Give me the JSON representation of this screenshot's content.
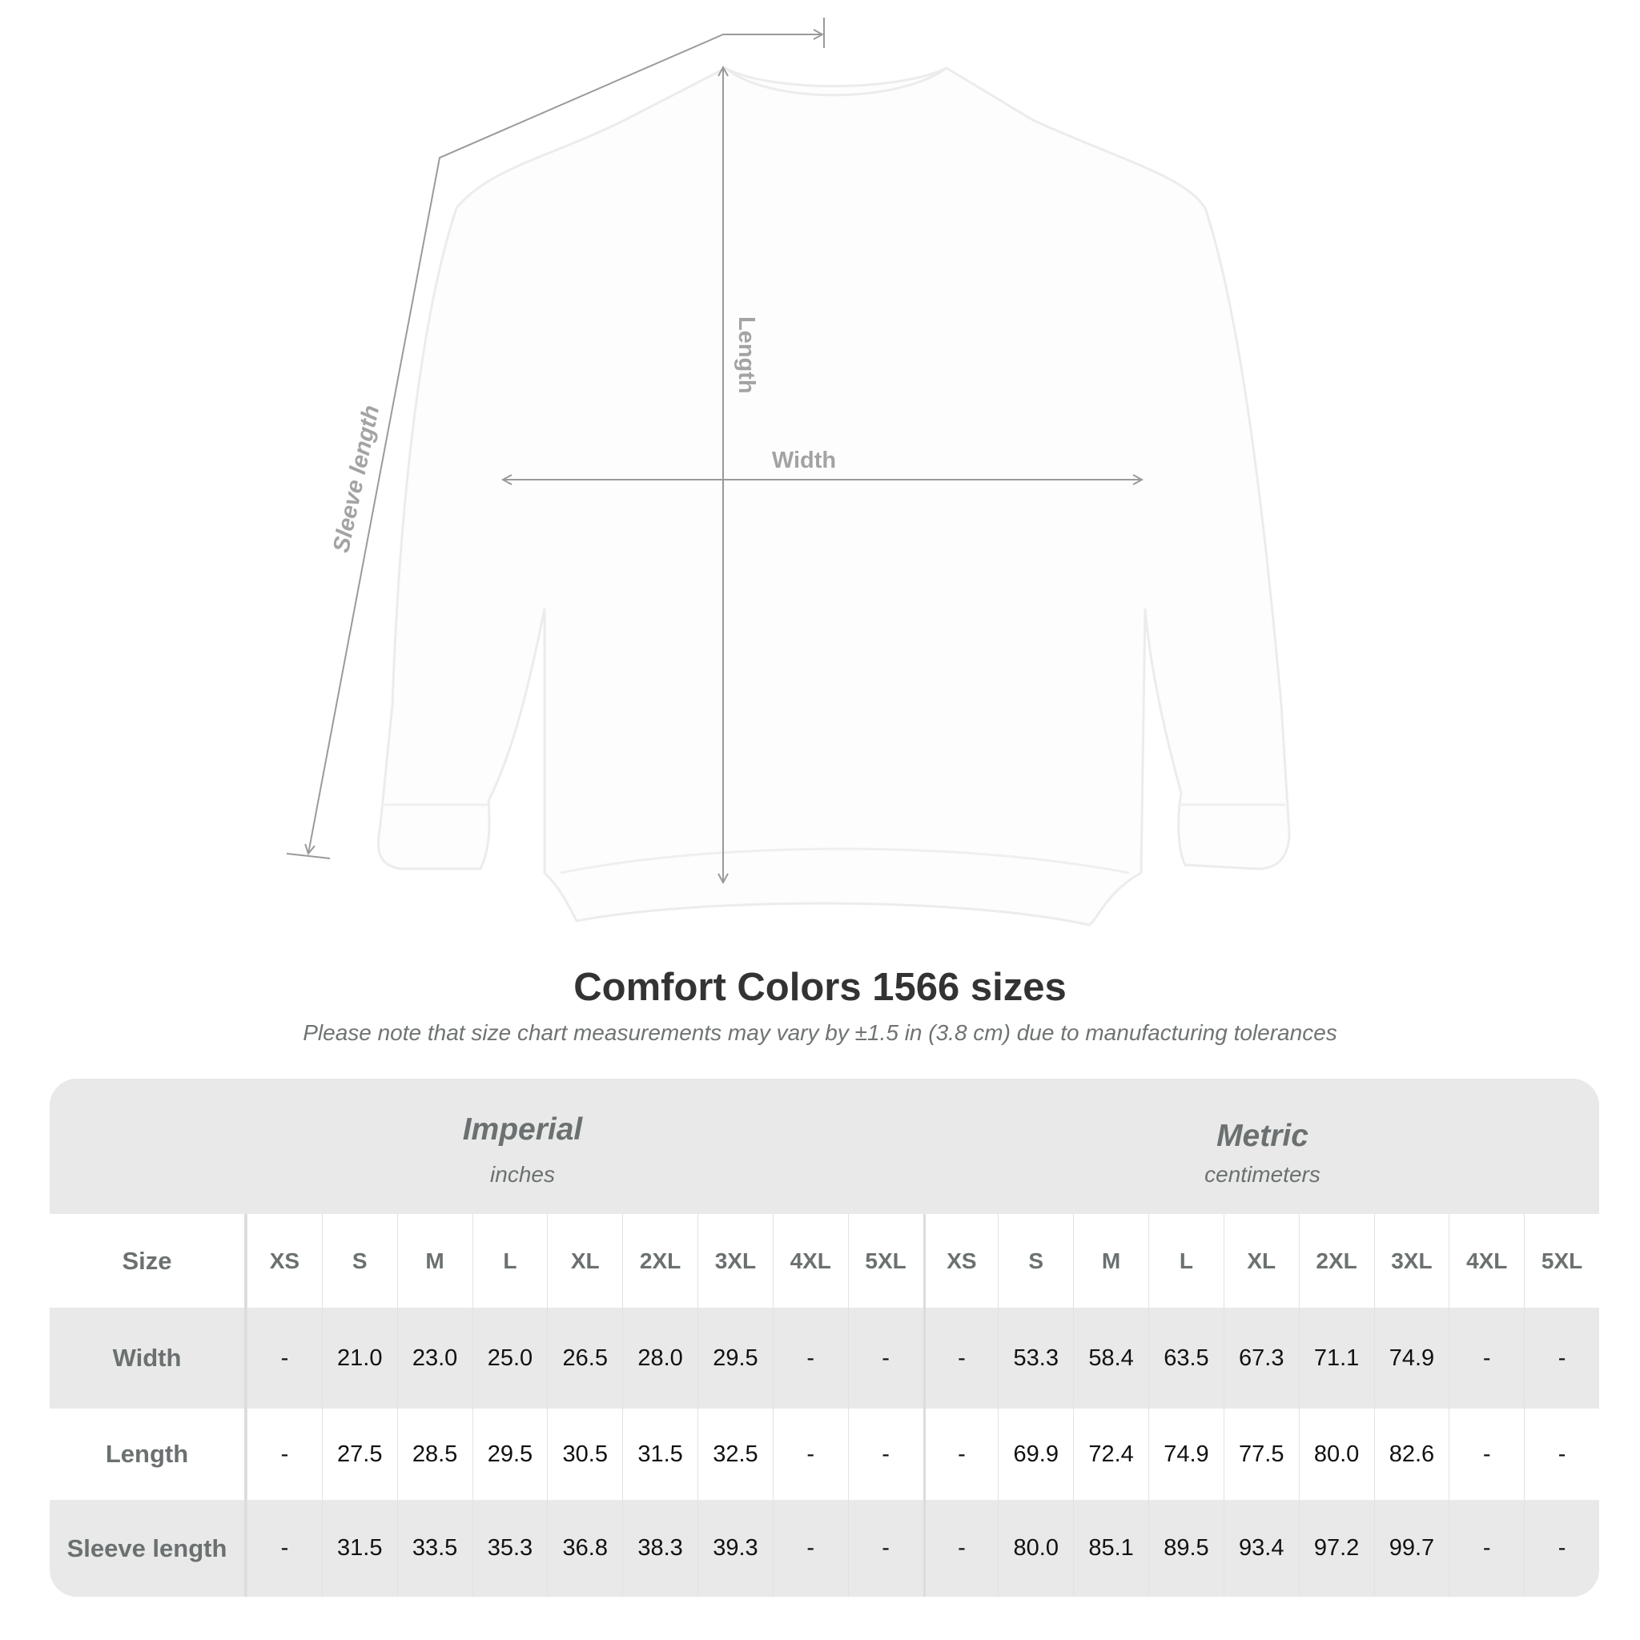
{
  "diagram": {
    "labels": {
      "length": "Length",
      "width": "Width",
      "sleeve": "Sleeve length"
    },
    "line_color": "#9a9a9a",
    "label_color": "#a3a3a3"
  },
  "title": "Comfort Colors 1566 sizes",
  "subtitle": "Please note that size chart measurements may vary by ±1.5 in (3.8 cm) due to manufacturing tolerances",
  "table": {
    "imperial": {
      "name": "Imperial",
      "unit": "inches"
    },
    "metric": {
      "name": "Metric",
      "unit": "centimeters"
    },
    "size_label": "Size",
    "sizes": [
      "XS",
      "S",
      "M",
      "L",
      "XL",
      "2XL",
      "3XL",
      "4XL",
      "5XL"
    ],
    "rows": [
      {
        "label": "Width",
        "imperial": [
          "-",
          "21.0",
          "23.0",
          "25.0",
          "26.5",
          "28.0",
          "29.5",
          "-",
          "-"
        ],
        "metric": [
          "-",
          "53.3",
          "58.4",
          "63.5",
          "67.3",
          "71.1",
          "74.9",
          "-",
          "-"
        ]
      },
      {
        "label": "Length",
        "imperial": [
          "-",
          "27.5",
          "28.5",
          "29.5",
          "30.5",
          "31.5",
          "32.5",
          "-",
          "-"
        ],
        "metric": [
          "-",
          "69.9",
          "72.4",
          "74.9",
          "77.5",
          "80.0",
          "82.6",
          "-",
          "-"
        ]
      },
      {
        "label": "Sleeve length",
        "imperial": [
          "-",
          "31.5",
          "33.5",
          "35.3",
          "36.8",
          "38.3",
          "39.3",
          "-",
          "-"
        ],
        "metric": [
          "-",
          "80.0",
          "85.1",
          "89.5",
          "93.4",
          "97.2",
          "99.7",
          "-",
          "-"
        ]
      }
    ],
    "header_bg": "#e9e9e9",
    "label_color": "#6b7070"
  }
}
